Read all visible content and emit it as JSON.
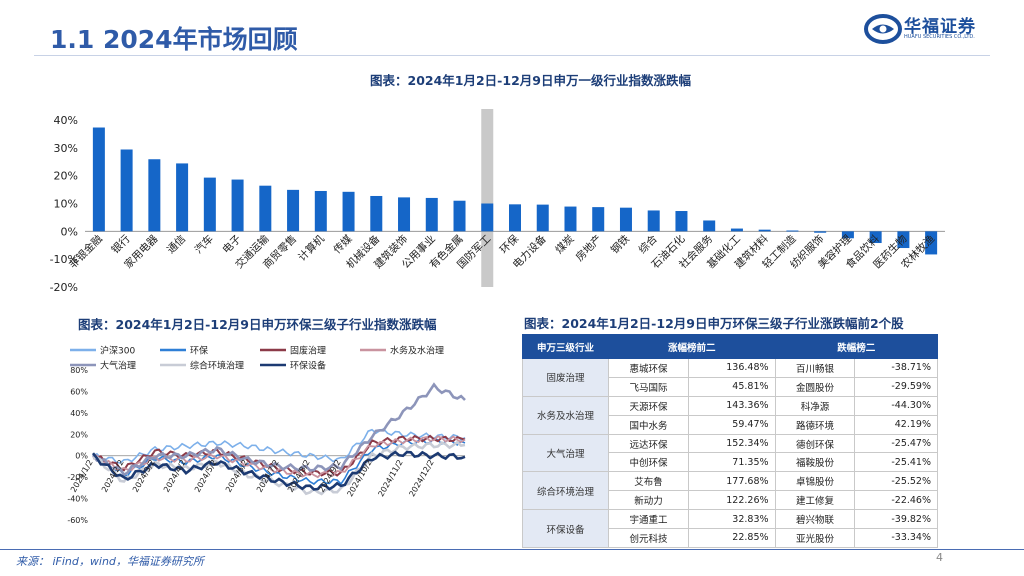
{
  "page": {
    "title": "1.1 2024年市场回顾",
    "logo_text": "华福证券",
    "logo_sub": "HUAFU SECURITIES CO.,LTD.",
    "source": "来源： iFind，wind，华福证券研究所",
    "page_number": "4"
  },
  "bar_chart": {
    "title": "图表：2024年1月2日-12月9日申万一级行业指数涨跌幅",
    "highlight_index": 14,
    "colors": {
      "bar": "#1566c8",
      "highlight_bg": "#c9c9c9",
      "axis_text": "#222222"
    }
  },
  "line_chart": {
    "title": "图表：2024年1月2日-12月9日申万环保三级子行业指数涨跌幅"
  },
  "table": {
    "title": "图表：2024年1月2日-12月9日申万环保三级子行业涨跌幅前2个股",
    "headers": [
      "申万三级行业",
      "涨幅榜前二",
      "跌幅榜二"
    ],
    "groups": [
      {
        "industry": "固废治理",
        "rows": [
          {
            "up_name": "惠城环保",
            "up_pct": "136.48%",
            "down_name": "百川畅银",
            "down_pct": "-38.71%"
          },
          {
            "up_name": "飞马国际",
            "up_pct": "45.81%",
            "down_name": "金圆股份",
            "down_pct": "-29.59%"
          }
        ]
      },
      {
        "industry": "水务及水治理",
        "rows": [
          {
            "up_name": "天源环保",
            "up_pct": "143.36%",
            "down_name": "科净源",
            "down_pct": "-44.30%"
          },
          {
            "up_name": "国中水务",
            "up_pct": "59.47%",
            "down_name": "路德环境",
            "down_pct": "42.19%"
          }
        ]
      },
      {
        "industry": "大气治理",
        "rows": [
          {
            "up_name": "远达环保",
            "up_pct": "152.34%",
            "down_name": "德创环保",
            "down_pct": "-25.47%"
          },
          {
            "up_name": "中创环保",
            "up_pct": "71.35%",
            "down_name": "福鞍股份",
            "down_pct": "-25.41%"
          }
        ]
      },
      {
        "industry": "综合环境治理",
        "rows": [
          {
            "up_name": "艾布鲁",
            "up_pct": "177.68%",
            "down_name": "卓锦股份",
            "down_pct": "-25.52%"
          },
          {
            "up_name": "新动力",
            "up_pct": "122.26%",
            "down_name": "建工修复",
            "down_pct": "-22.46%"
          }
        ]
      },
      {
        "industry": "环保设备",
        "rows": [
          {
            "up_name": "宇通重工",
            "up_pct": "32.83%",
            "down_name": "碧兴物联",
            "down_pct": "-39.82%"
          },
          {
            "up_name": "创元科技",
            "up_pct": "22.85%",
            "down_name": "亚光股份",
            "down_pct": "-33.34%"
          }
        ]
      }
    ]
  },
  "chart_data": [
    {
      "type": "bar",
      "title": "图表：2024年1月2日-12月9日申万一级行业指数涨跌幅",
      "categories": [
        "非银金融",
        "银行",
        "家用电器",
        "通信",
        "汽车",
        "电子",
        "交通运输",
        "商贸零售",
        "计算机",
        "传媒",
        "机械设备",
        "建筑装饰",
        "公用事业",
        "有色金属",
        "国防军工",
        "环保",
        "电力设备",
        "煤炭",
        "房地产",
        "钢铁",
        "综合",
        "石油石化",
        "社会服务",
        "基础化工",
        "建筑材料",
        "轻工制造",
        "纺织服饰",
        "美容护理",
        "食品饮料",
        "医药生物",
        "农林牧渔"
      ],
      "values": [
        37.3,
        29.4,
        25.9,
        24.4,
        19.3,
        18.6,
        16.4,
        14.9,
        14.5,
        14.2,
        12.7,
        12.2,
        12.0,
        11.0,
        10.0,
        9.7,
        9.6,
        8.9,
        8.7,
        8.5,
        7.5,
        7.3,
        3.9,
        1.0,
        0.6,
        0.3,
        -0.5,
        -2.5,
        -4.2,
        -6.0,
        -8.3
      ],
      "ylim": [
        -20,
        40
      ],
      "yticks": [
        "40%",
        "30%",
        "20%",
        "10%",
        "0%",
        "-10%",
        "-20%"
      ]
    },
    {
      "type": "line",
      "title": "图表：2024年1月2日-12月9日申万环保三级子行业指数涨跌幅",
      "x": [
        "2024/1/2",
        "2024/2/2",
        "2024/3/2",
        "2024/4/2",
        "2024/5/2",
        "2024/6/2",
        "2024/7/2",
        "2024/8/2",
        "2024/9/2",
        "2024/10/2",
        "2024/11/2",
        "2024/12/2",
        "2024/12/9"
      ],
      "xticks": [
        "2024/1/2",
        "2024/2/2",
        "2024/3/2",
        "2024/4/2",
        "2024/5/2",
        "2024/6/2",
        "2024/7/2",
        "2024/8/2",
        "2024/9/2",
        "2024/10/2",
        "2024/11/2",
        "2024/12/2"
      ],
      "ylim": [
        -60,
        80
      ],
      "yticks": [
        "80%",
        "60%",
        "40%",
        "20%",
        "0%",
        "-20%",
        "-40%",
        "-60%"
      ],
      "series": [
        {
          "name": "沪深300",
          "color": "#7db0ea",
          "width": 1.6,
          "values": [
            0,
            -6,
            6,
            9,
            12,
            9,
            4,
            0,
            -4,
            24,
            20,
            18,
            17
          ]
        },
        {
          "name": "环保",
          "color": "#2e7fd6",
          "width": 1.6,
          "values": [
            0,
            -18,
            -2,
            -6,
            0,
            -10,
            -18,
            -24,
            -24,
            6,
            12,
            14,
            12
          ]
        },
        {
          "name": "固废治理",
          "color": "#8c3a48",
          "width": 2.0,
          "values": [
            0,
            -12,
            4,
            0,
            4,
            -4,
            -12,
            -16,
            -16,
            12,
            16,
            16,
            15
          ]
        },
        {
          "name": "水务及水治理",
          "color": "#c9939f",
          "width": 1.8,
          "values": [
            0,
            -14,
            -2,
            -4,
            0,
            -8,
            -14,
            -18,
            -16,
            10,
            14,
            16,
            15
          ]
        },
        {
          "name": "大气治理",
          "color": "#8d95ba",
          "width": 2.6,
          "values": [
            0,
            -16,
            0,
            0,
            6,
            -4,
            -10,
            -12,
            -10,
            18,
            40,
            64,
            52
          ]
        },
        {
          "name": "综合环境治理",
          "color": "#c8ccd6",
          "width": 2.6,
          "values": [
            0,
            -24,
            -8,
            -12,
            -6,
            -18,
            -26,
            -34,
            -32,
            0,
            8,
            10,
            10
          ]
        },
        {
          "name": "环保设备",
          "color": "#1c3a72",
          "width": 2.6,
          "values": [
            0,
            -22,
            -8,
            -14,
            -6,
            -16,
            -24,
            -30,
            -28,
            -2,
            2,
            0,
            -1
          ]
        }
      ]
    }
  ]
}
